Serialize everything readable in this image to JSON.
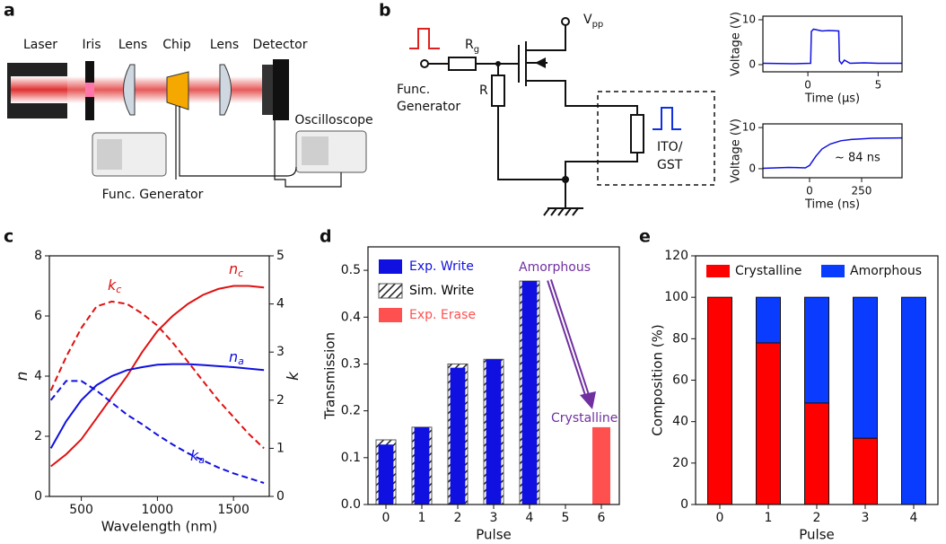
{
  "panel_labels": [
    "a",
    "b",
    "c",
    "d",
    "e"
  ],
  "setup": {
    "laser": "Laser",
    "iris": "Iris",
    "lens1": "Lens",
    "chip": "Chip",
    "lens2": "Lens",
    "detector": "Detector",
    "oscilloscope": "Oscilloscope",
    "func_generator": "Func. Generator"
  },
  "circuit": {
    "vpp": {
      "label": "V",
      "sub": "pp"
    },
    "rg": {
      "label": "R",
      "sub": "g"
    },
    "r": "R",
    "func_generator": [
      "Func.",
      "Generator"
    ],
    "device": [
      "ITO/",
      "GST"
    ]
  },
  "chart_data": [
    {
      "type": "line",
      "xlabel": "Time (μs)",
      "ylabel": "Voltage (V)",
      "xlim": [
        -3.2,
        6.7
      ],
      "ylim": [
        -1.6,
        10.8
      ],
      "xticks": [
        0,
        5
      ],
      "yticks": [
        0,
        10
      ],
      "x": [
        -3.2,
        -1,
        0.2,
        0.25,
        0.4,
        1,
        1.5,
        2.2,
        2.25,
        2.4,
        2.6,
        3,
        4,
        5,
        6.7
      ],
      "series": [
        {
          "color": "#1010e0",
          "values": [
            0.3,
            0.2,
            0.3,
            7.4,
            7.9,
            7.5,
            7.6,
            7.5,
            0.8,
            0.2,
            1.0,
            0.3,
            0.4,
            0.3,
            0.3
          ]
        }
      ]
    },
    {
      "type": "line",
      "xlabel": "Time (ns)",
      "ylabel": "Voltage (V)",
      "xlim": [
        -224,
        444
      ],
      "ylim": [
        -2.2,
        10.9
      ],
      "xticks": [
        0,
        250
      ],
      "yticks": [
        0,
        10
      ],
      "annotation": "~ 84 ns",
      "x": [
        -224,
        -100,
        -20,
        0,
        30,
        60,
        100,
        150,
        200,
        300,
        444
      ],
      "series": [
        {
          "color": "#1010e0",
          "values": [
            0.1,
            0.3,
            0.2,
            0.8,
            3.0,
            4.8,
            6.0,
            6.8,
            7.1,
            7.4,
            7.5
          ]
        }
      ]
    },
    {
      "type": "line",
      "xlabel": "Wavelength (nm)",
      "ylabel": "n",
      "y2label": "k",
      "xlim": [
        290,
        1735
      ],
      "ylim": [
        0,
        8
      ],
      "y2lim": [
        0,
        5
      ],
      "xticks": [
        500,
        1000,
        1500
      ],
      "yticks": [
        0,
        2,
        4,
        6,
        8
      ],
      "y2ticks": [
        0,
        1,
        2,
        3,
        4,
        5
      ],
      "x": [
        300,
        400,
        500,
        600,
        700,
        800,
        900,
        1000,
        1100,
        1200,
        1300,
        1400,
        1500,
        1600,
        1700
      ],
      "series": [
        {
          "label": "n",
          "sub": "c",
          "color": "#e01010",
          "values": [
            1.0,
            1.4,
            1.9,
            2.6,
            3.3,
            4.0,
            4.8,
            5.5,
            6.0,
            6.4,
            6.7,
            6.9,
            7.0,
            7.0,
            6.95
          ]
        },
        {
          "label": "n",
          "sub": "a",
          "color": "#1010e0",
          "values": [
            1.6,
            2.5,
            3.2,
            3.7,
            4.0,
            4.2,
            4.3,
            4.38,
            4.4,
            4.4,
            4.37,
            4.33,
            4.3,
            4.25,
            4.2
          ]
        },
        {
          "label": "k",
          "sub": "c",
          "color": "#e01010",
          "axis": "y2",
          "dashed": true,
          "values": [
            2.2,
            2.9,
            3.5,
            3.95,
            4.05,
            4.0,
            3.8,
            3.55,
            3.2,
            2.8,
            2.4,
            2.0,
            1.65,
            1.3,
            1.0
          ]
        },
        {
          "label": "k",
          "sub": "a",
          "color": "#1010e0",
          "axis": "y2",
          "dashed": true,
          "values": [
            2.0,
            2.4,
            2.4,
            2.2,
            1.95,
            1.7,
            1.5,
            1.28,
            1.08,
            0.9,
            0.75,
            0.6,
            0.48,
            0.38,
            0.28
          ]
        }
      ]
    },
    {
      "type": "bar",
      "xlabel": "Pulse",
      "ylabel": "Transmission",
      "ylim": [
        0,
        0.55
      ],
      "yticks": [
        {
          "value": 0,
          "label": "0.0"
        },
        0.1,
        0.2,
        0.3,
        0.4,
        0.5
      ],
      "categories": [
        "0",
        "1",
        "2",
        "3",
        "4",
        "5",
        "6"
      ],
      "annotations": [
        "Amorphous",
        "Crystalline"
      ],
      "annotation_color": "#7030a0",
      "series": [
        {
          "name": "Exp. Write",
          "color": "#1010e0",
          "values": [
            0.128,
            0.165,
            0.292,
            0.31,
            0.477,
            null,
            null
          ]
        },
        {
          "name": "Sim. Write",
          "color": "#000000",
          "hatch": true,
          "values": [
            0.138,
            0.165,
            0.3,
            0.31,
            0.477,
            null,
            null
          ]
        },
        {
          "name": "Exp. Erase",
          "color": "#ff5050",
          "values": [
            null,
            null,
            null,
            null,
            null,
            null,
            0.165
          ]
        }
      ]
    },
    {
      "type": "stacked_bar",
      "xlabel": "Pulse",
      "ylabel": "Composition (%)",
      "ylim": [
        0,
        120
      ],
      "yticks": [
        0,
        20,
        40,
        60,
        80,
        100,
        120
      ],
      "categories": [
        "0",
        "1",
        "2",
        "3",
        "4"
      ],
      "series": [
        {
          "name": "Crystalline",
          "color": "#ff0000",
          "values": [
            100,
            78,
            49,
            32,
            0
          ]
        },
        {
          "name": "Amorphous",
          "color": "#0a3cff",
          "values": [
            0,
            22,
            51,
            68,
            100
          ]
        }
      ]
    }
  ]
}
